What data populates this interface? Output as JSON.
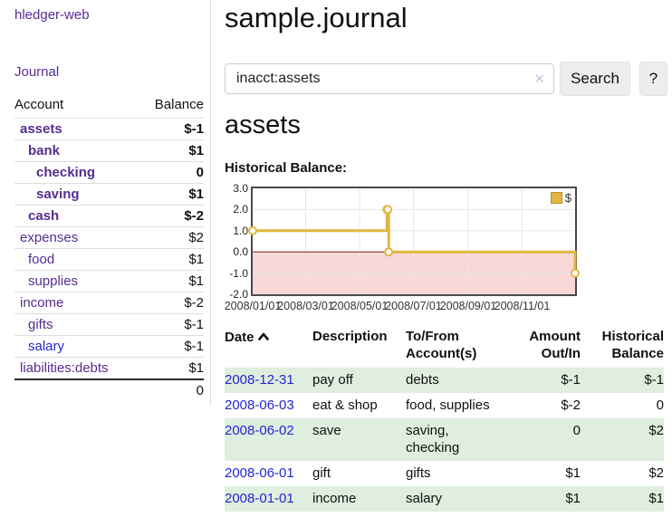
{
  "colors": {
    "purple": "#552d90",
    "blue": "#2525d2",
    "neg": "#8f1717",
    "rose": "#b36b6b",
    "rowGreen": "#dfeede",
    "pink": "#f9d8d8",
    "zero": "#8b1a1a",
    "gold": "#e2b63e",
    "goldDark": "#b8922d",
    "grid": "#e8e8e8",
    "chartBorder": "#4a4a4a",
    "divider": "#dddddd",
    "btnBg": "#ededed",
    "inputBorder": "#cccccc",
    "clearX": "#c9c3dc"
  },
  "app": {
    "brand": "hledger-web",
    "nav_journal": "Journal"
  },
  "sidebar": {
    "col_account": "Account",
    "col_balance": "Balance",
    "rows": [
      {
        "label": "assets",
        "balance": "$-1"
      },
      {
        "label": "bank",
        "balance": "$1"
      },
      {
        "label": "checking",
        "balance": "0"
      },
      {
        "label": "saving",
        "balance": "$1"
      },
      {
        "label": "cash",
        "balance": "$-2"
      },
      {
        "label": "expenses",
        "balance": "$2"
      },
      {
        "label": "food",
        "balance": "$1"
      },
      {
        "label": "supplies",
        "balance": "$1"
      },
      {
        "label": "income",
        "balance": "$-2"
      },
      {
        "label": "gifts",
        "balance": "$-1"
      },
      {
        "label": "salary",
        "balance": "$-1"
      },
      {
        "label": "liabilities:debts",
        "balance": "$1"
      }
    ],
    "total": "0"
  },
  "main": {
    "title": "sample.journal",
    "search": {
      "value": "inacct:assets",
      "clear_icon": "✕",
      "button_label": "Search",
      "help_label": "?"
    },
    "account_heading": "assets",
    "chart_title": "Historical Balance:"
  },
  "register": {
    "headers": {
      "date": "Date",
      "description": "Description",
      "account": "To/From Account(s)",
      "amount": "Amount Out/In",
      "balance": "Historical Balance"
    },
    "rows": [
      {
        "date": "2008-12-31",
        "description": "pay off",
        "account": "debts",
        "amount": "$-1",
        "balance": "$-1"
      },
      {
        "date": "2008-06-03",
        "description": "eat & shop",
        "account": "food, supplies",
        "amount": "$-2",
        "balance": "0"
      },
      {
        "date": "2008-06-02",
        "description": "save",
        "account": "saving, checking",
        "amount": "0",
        "balance": "$2"
      },
      {
        "date": "2008-06-01",
        "description": "gift",
        "account": "gifts",
        "amount": "$1",
        "balance": "$2"
      },
      {
        "date": "2008-01-01",
        "description": "income",
        "account": "salary",
        "amount": "$1",
        "balance": "$1"
      }
    ]
  },
  "chart_data": {
    "type": "line",
    "step": true,
    "title": "Historical Balance",
    "legend": "$",
    "legend_position": "top-right",
    "x": [
      "2008-01-01",
      "2008-06-01",
      "2008-06-02",
      "2008-06-03",
      "2008-12-31"
    ],
    "values": [
      1,
      2,
      2,
      0,
      -1
    ],
    "xlim": [
      "2008-01-01",
      "2008-12-31"
    ],
    "ylim": [
      -2,
      3
    ],
    "yticks": [
      3,
      2,
      1,
      0,
      -1,
      -2
    ],
    "ytick_labels": [
      "3.0",
      "2.0",
      "1.0",
      "0.0",
      "-1.0",
      "-2.0"
    ],
    "xticks": [
      "2008-01-01",
      "2008-03-01",
      "2008-05-01",
      "2008-07-01",
      "2008-09-01",
      "2008-11-01"
    ],
    "xtick_labels": [
      "2008/01/01",
      "2008/03/01",
      "2008/05/01",
      "2008/07/01",
      "2008/09/01",
      "2008/11/01"
    ],
    "grid": true,
    "negative_region_fill": true
  }
}
